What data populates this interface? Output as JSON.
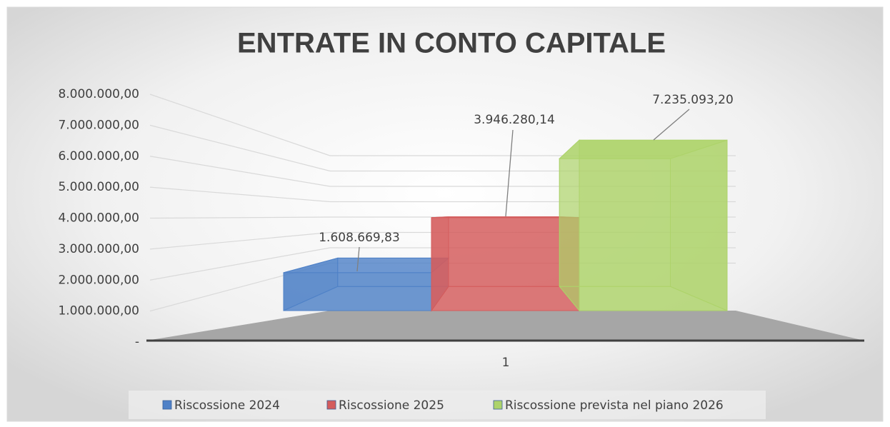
{
  "chart_data": {
    "type": "bar3d",
    "title": "ENTRATE IN CONTO CAPITALE",
    "categories": [
      "1"
    ],
    "series": [
      {
        "name": "Riscossione 2024",
        "color": "#4f81c7",
        "values": [
          1608669.83
        ],
        "value_labels": [
          "1.608.669,83"
        ]
      },
      {
        "name": "Riscossione 2025",
        "color": "#d45c5c",
        "values": [
          3946280.14
        ],
        "value_labels": [
          "3.946.280,14"
        ]
      },
      {
        "name": "Riscossione prevista nel piano 2026",
        "color": "#add36a",
        "values": [
          7235093.2
        ],
        "value_labels": [
          "7.235.093,20"
        ]
      }
    ],
    "ylim": [
      0,
      8000000
    ],
    "yticks": [
      {
        "value": 0,
        "label": "-"
      },
      {
        "value": 1000000,
        "label": "1.000.000,00"
      },
      {
        "value": 2000000,
        "label": "2.000.000,00"
      },
      {
        "value": 3000000,
        "label": "3.000.000,00"
      },
      {
        "value": 4000000,
        "label": "4.000.000,00"
      },
      {
        "value": 5000000,
        "label": "5.000.000,00"
      },
      {
        "value": 6000000,
        "label": "6.000.000,00"
      },
      {
        "value": 7000000,
        "label": "7.000.000,00"
      },
      {
        "value": 8000000,
        "label": "8.000.000,00"
      }
    ],
    "grid": true,
    "legend": "bottom"
  }
}
